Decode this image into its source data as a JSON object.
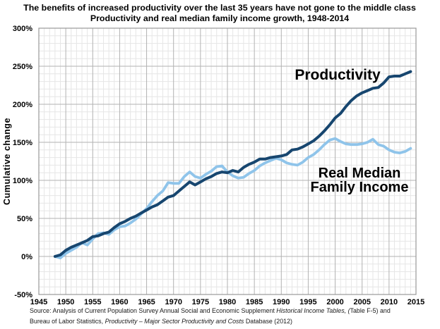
{
  "header": {
    "title": "The benefits of increased productivity over the last 35 years have not gone to the middle class",
    "subtitle": "Productivity and real median family income growth, 1948-2014"
  },
  "colors": {
    "productivity_line": "#17466F",
    "median_income_line": "#8FC4EA",
    "grid_minor": "#E6E6E6",
    "grid_major": "#B2B2B2",
    "plot_border": "#999999",
    "text": "#000000"
  },
  "annotations": {
    "productivity_label": "Productivity",
    "median_income_label_line1": "Real Median",
    "median_income_label_line2": "Family Income"
  },
  "source": {
    "lines": [
      {
        "segments": [
          {
            "text": "Source:  Analysis of Current Population Survey Annual Social and Economic Supplement ",
            "italic": false
          },
          {
            "text": "Historical Income Tables, (",
            "italic": true
          },
          {
            "text": "Table F-5) and",
            "italic": false
          }
        ]
      },
      {
        "segments": [
          {
            "text": "Bureau of Labor Statistics, ",
            "italic": false
          },
          {
            "text": "Productivity – Major Sector Productivity and Costs ",
            "italic": true
          },
          {
            "text": "Database (2012)",
            "italic": false
          }
        ]
      }
    ]
  },
  "chart_data": {
    "type": "line",
    "title": "The benefits of increased productivity over the last 35 years have not gone to the middle class",
    "subtitle": "Productivity and real median family income growth, 1948-2014",
    "xlabel": "",
    "ylabel": "Cumulative change",
    "x_range": [
      1945,
      2015
    ],
    "y_range": [
      -50,
      300
    ],
    "x_tick_values": [
      1945,
      1950,
      1955,
      1960,
      1965,
      1970,
      1975,
      1980,
      1985,
      1990,
      1995,
      2000,
      2005,
      2010,
      2015
    ],
    "y_tick_values": [
      300,
      250,
      200,
      150,
      100,
      50,
      0,
      -50
    ],
    "y_tick_suffix": "%",
    "grid": "major and minor gridlines on (minor: 1 year / 10%, major: 5 years / 50%)",
    "legend_position": "inline text annotations on plot",
    "x": [
      1948,
      1949,
      1950,
      1951,
      1952,
      1953,
      1954,
      1955,
      1956,
      1957,
      1958,
      1959,
      1960,
      1961,
      1962,
      1963,
      1964,
      1965,
      1966,
      1967,
      1968,
      1969,
      1970,
      1971,
      1972,
      1973,
      1974,
      1975,
      1976,
      1977,
      1978,
      1979,
      1980,
      1981,
      1982,
      1983,
      1984,
      1985,
      1986,
      1987,
      1988,
      1989,
      1990,
      1991,
      1992,
      1993,
      1994,
      1995,
      1996,
      1997,
      1998,
      1999,
      2000,
      2001,
      2002,
      2003,
      2004,
      2005,
      2006,
      2007,
      2008,
      2009,
      2010,
      2011,
      2012,
      2013,
      2014
    ],
    "series": [
      {
        "name": "Productivity",
        "color": "#17466F",
        "stroke_width": 4,
        "values": [
          0,
          2,
          8,
          12,
          15,
          18,
          21,
          26,
          27,
          30,
          32,
          38,
          43,
          46,
          50,
          53,
          57,
          61,
          65,
          68,
          73,
          78,
          80,
          86,
          92,
          98,
          94,
          98,
          102,
          105,
          109,
          111,
          110,
          113,
          111,
          117,
          121,
          124,
          128,
          128,
          130,
          131,
          132,
          134,
          140,
          141,
          144,
          148,
          152,
          158,
          165,
          173,
          182,
          188,
          197,
          205,
          211,
          215,
          218,
          221,
          222,
          228,
          236,
          237,
          237,
          240,
          243
        ]
      },
      {
        "name": "Real Median Family Income",
        "color": "#8FC4EA",
        "stroke_width": 3.8,
        "values": [
          0,
          -2,
          4,
          8,
          12,
          18,
          15,
          23,
          30,
          31,
          29,
          35,
          39,
          40,
          44,
          49,
          56,
          63,
          72,
          80,
          86,
          97,
          96,
          96,
          105,
          111,
          105,
          103,
          108,
          112,
          118,
          119,
          111,
          106,
          103,
          104,
          109,
          113,
          119,
          123,
          126,
          129,
          127,
          123,
          121,
          120,
          124,
          130,
          134,
          140,
          147,
          153,
          155,
          151,
          148,
          147,
          147,
          148,
          150,
          154,
          147,
          145,
          140,
          137,
          136,
          138,
          142
        ]
      }
    ]
  }
}
